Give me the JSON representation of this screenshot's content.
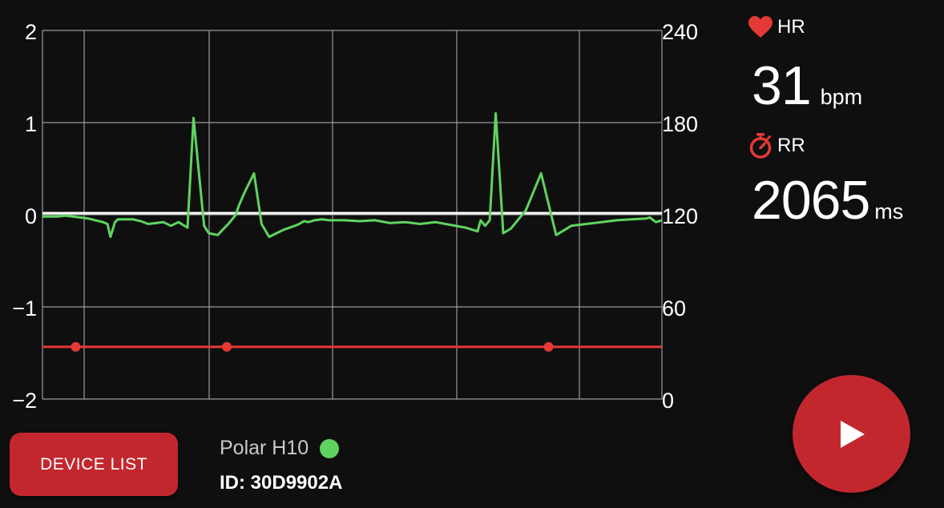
{
  "colors": {
    "background": "#0f0f10",
    "accent": "#c3272e",
    "ecg_line": "#5fd35f",
    "rr_line": "#e53935",
    "grid": "#9a9a9a",
    "baseline": "#ffffff"
  },
  "chart_data": {
    "type": "line",
    "y_left": {
      "ticks": [
        "2",
        "1",
        "0",
        "−1",
        "−2"
      ],
      "range": [
        -2,
        2
      ]
    },
    "y_right": {
      "ticks": [
        "240",
        "180",
        "120",
        "60",
        "0"
      ],
      "range": [
        0,
        240
      ]
    },
    "grid": true,
    "series": [
      {
        "axis": "left",
        "x": [
          0,
          0.5,
          1,
          1.5,
          2,
          2.5,
          3,
          3.5,
          4,
          4.3,
          4.5,
          4.8,
          5,
          5.5,
          6,
          6.5,
          7,
          8,
          8.5,
          9,
          9.6,
          10,
          10.7,
          11,
          11.6,
          12,
          12.3,
          12.4,
          12.8,
          13,
          13.4,
          14,
          14.5,
          15,
          15.5,
          16,
          16.7,
          17,
          17.3,
          17.6,
          18,
          18.5,
          19,
          20,
          21,
          22,
          23,
          24,
          25,
          26,
          27,
          28,
          28.8,
          29,
          29.3,
          29.6,
          30,
          30.5,
          31,
          32,
          33,
          34,
          35,
          36,
          37,
          38,
          39,
          40,
          40.2,
          40.6,
          41
        ],
        "values": [
          -0.02,
          -0.02,
          -0.02,
          -0.01,
          -0.02,
          -0.03,
          -0.04,
          -0.06,
          -0.08,
          -0.1,
          -0.24,
          -0.08,
          -0.05,
          -0.05,
          -0.05,
          -0.07,
          -0.1,
          -0.08,
          -0.12,
          -0.08,
          -0.14,
          1.05,
          -0.12,
          -0.2,
          -0.22,
          -0.15,
          -0.1,
          -0.08,
          0.0,
          0.1,
          0.25,
          0.45,
          -0.1,
          -0.24,
          -0.2,
          -0.16,
          -0.12,
          -0.1,
          -0.07,
          -0.08,
          -0.06,
          -0.05,
          -0.06,
          -0.06,
          -0.07,
          -0.06,
          -0.09,
          -0.08,
          -0.1,
          -0.08,
          -0.11,
          -0.14,
          -0.18,
          -0.06,
          -0.12,
          -0.06,
          1.1,
          -0.2,
          -0.15,
          0.05,
          0.45,
          -0.22,
          -0.12,
          -0.1,
          -0.08,
          -0.06,
          -0.05,
          -0.04,
          -0.03,
          -0.08,
          -0.06
        ]
      },
      {
        "axis": "right",
        "x": [
          0,
          41
        ],
        "values": [
          34,
          34
        ],
        "points_x": [
          2.2,
          12.2,
          33.5
        ]
      }
    ]
  },
  "hr": {
    "label": "HR",
    "value": "31",
    "unit": "bpm",
    "icon": "heart-icon"
  },
  "rr": {
    "label": "RR",
    "value": "2065",
    "unit": "ms",
    "icon": "stopwatch-icon"
  },
  "device": {
    "button_label": "DEVICE LIST",
    "name": "Polar H10",
    "id_text": "ID: 30D9902A",
    "status": "connected"
  },
  "play": {
    "icon": "play-icon"
  }
}
